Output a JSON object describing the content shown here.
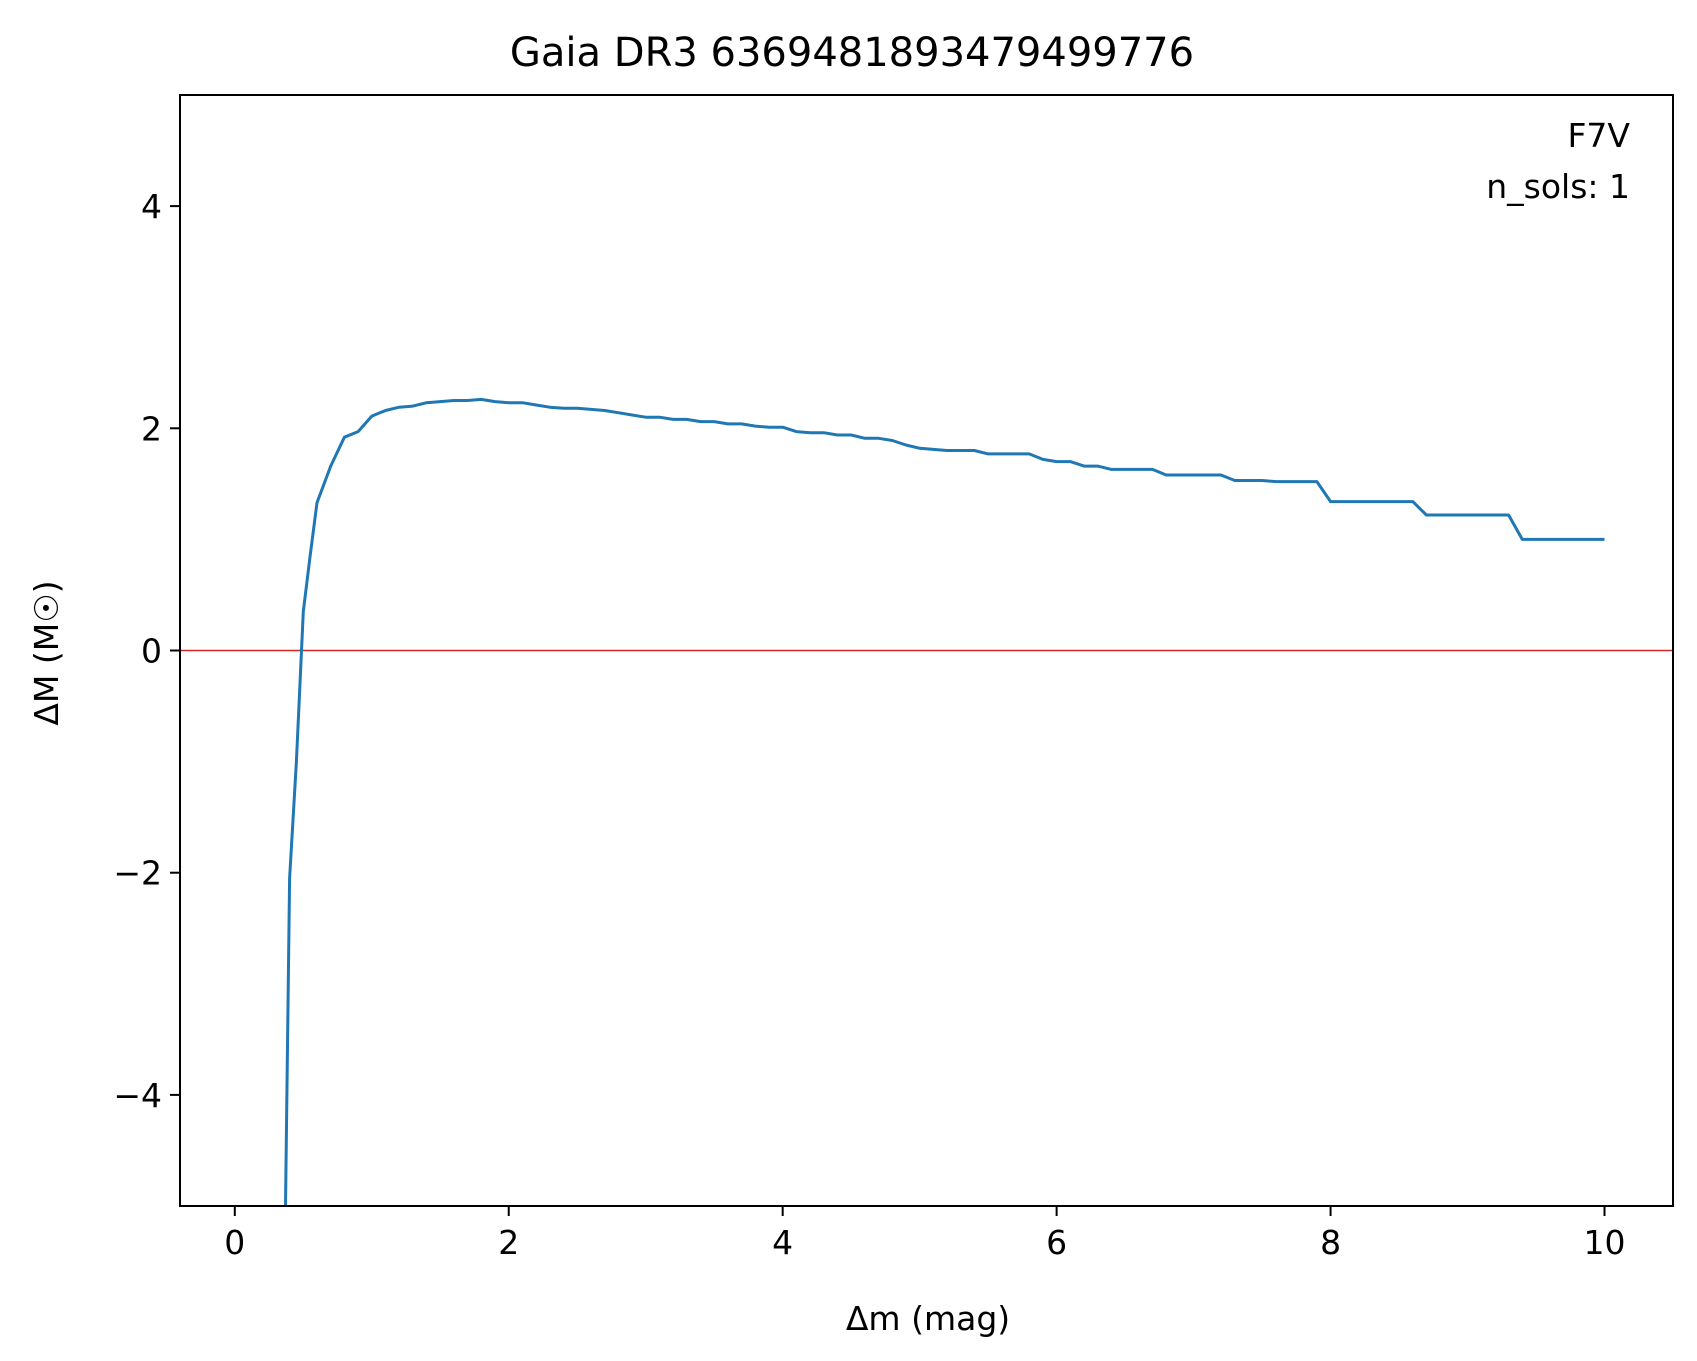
{
  "chart_data": {
    "type": "line",
    "title": "Gaia DR3 6369481893479499776",
    "xlabel": "Δm (mag)",
    "ylabel": "ΔM (M☉)",
    "xlim": [
      -0.4,
      10.5
    ],
    "ylim": [
      -5,
      5
    ],
    "xticks": [
      0,
      2,
      4,
      6,
      8,
      10
    ],
    "yticks": [
      -4,
      -2,
      0,
      2,
      4
    ],
    "xtick_labels": [
      "0",
      "2",
      "4",
      "6",
      "8",
      "10"
    ],
    "ytick_labels": [
      "−4",
      "−2",
      "0",
      "2",
      "4"
    ],
    "grid": false,
    "annotations": [
      "F7V",
      "n_sols: 1"
    ],
    "reference_line": {
      "y": 0,
      "color": "#d62728"
    },
    "series": [
      {
        "color": "#1f77b4",
        "x": [
          0.37,
          0.4,
          0.45,
          0.5,
          0.55,
          0.6,
          0.7,
          0.8,
          0.9,
          1.0,
          1.1,
          1.2,
          1.3,
          1.4,
          1.5,
          1.6,
          1.7,
          1.8,
          1.9,
          2.0,
          2.1,
          2.2,
          2.3,
          2.4,
          2.5,
          2.6,
          2.7,
          2.8,
          2.9,
          3.0,
          3.1,
          3.2,
          3.3,
          3.4,
          3.5,
          3.6,
          3.7,
          3.8,
          3.9,
          4.0,
          4.1,
          4.2,
          4.3,
          4.4,
          4.5,
          4.6,
          4.7,
          4.8,
          4.9,
          5.0,
          5.1,
          5.2,
          5.3,
          5.4,
          5.5,
          5.6,
          5.7,
          5.8,
          5.9,
          6.0,
          6.1,
          6.2,
          6.3,
          6.4,
          6.5,
          6.6,
          6.7,
          6.8,
          6.9,
          7.0,
          7.1,
          7.2,
          7.3,
          7.4,
          7.5,
          7.6,
          7.7,
          7.8,
          7.9,
          8.0,
          8.1,
          8.2,
          8.3,
          8.4,
          8.5,
          8.6,
          8.7,
          8.8,
          8.9,
          9.0,
          9.1,
          9.2,
          9.3,
          9.4,
          9.5,
          9.6,
          9.7,
          9.8,
          9.9,
          10.0
        ],
        "y": [
          -5.0,
          -2.05,
          -1.0,
          0.35,
          0.85,
          1.33,
          1.66,
          1.92,
          1.97,
          2.11,
          2.16,
          2.19,
          2.2,
          2.23,
          2.24,
          2.25,
          2.25,
          2.26,
          2.24,
          2.23,
          2.23,
          2.21,
          2.19,
          2.18,
          2.18,
          2.17,
          2.16,
          2.14,
          2.12,
          2.1,
          2.1,
          2.08,
          2.08,
          2.06,
          2.06,
          2.04,
          2.04,
          2.02,
          2.01,
          2.01,
          1.97,
          1.96,
          1.96,
          1.94,
          1.94,
          1.91,
          1.91,
          1.89,
          1.85,
          1.82,
          1.81,
          1.8,
          1.8,
          1.8,
          1.77,
          1.77,
          1.77,
          1.77,
          1.72,
          1.7,
          1.7,
          1.66,
          1.66,
          1.63,
          1.63,
          1.63,
          1.63,
          1.58,
          1.58,
          1.58,
          1.58,
          1.58,
          1.53,
          1.53,
          1.53,
          1.52,
          1.52,
          1.52,
          1.52,
          1.34,
          1.34,
          1.34,
          1.34,
          1.34,
          1.34,
          1.34,
          1.22,
          1.22,
          1.22,
          1.22,
          1.22,
          1.22,
          1.22,
          1.0,
          1.0,
          1.0,
          1.0,
          1.0,
          1.0,
          1.0
        ]
      }
    ]
  }
}
